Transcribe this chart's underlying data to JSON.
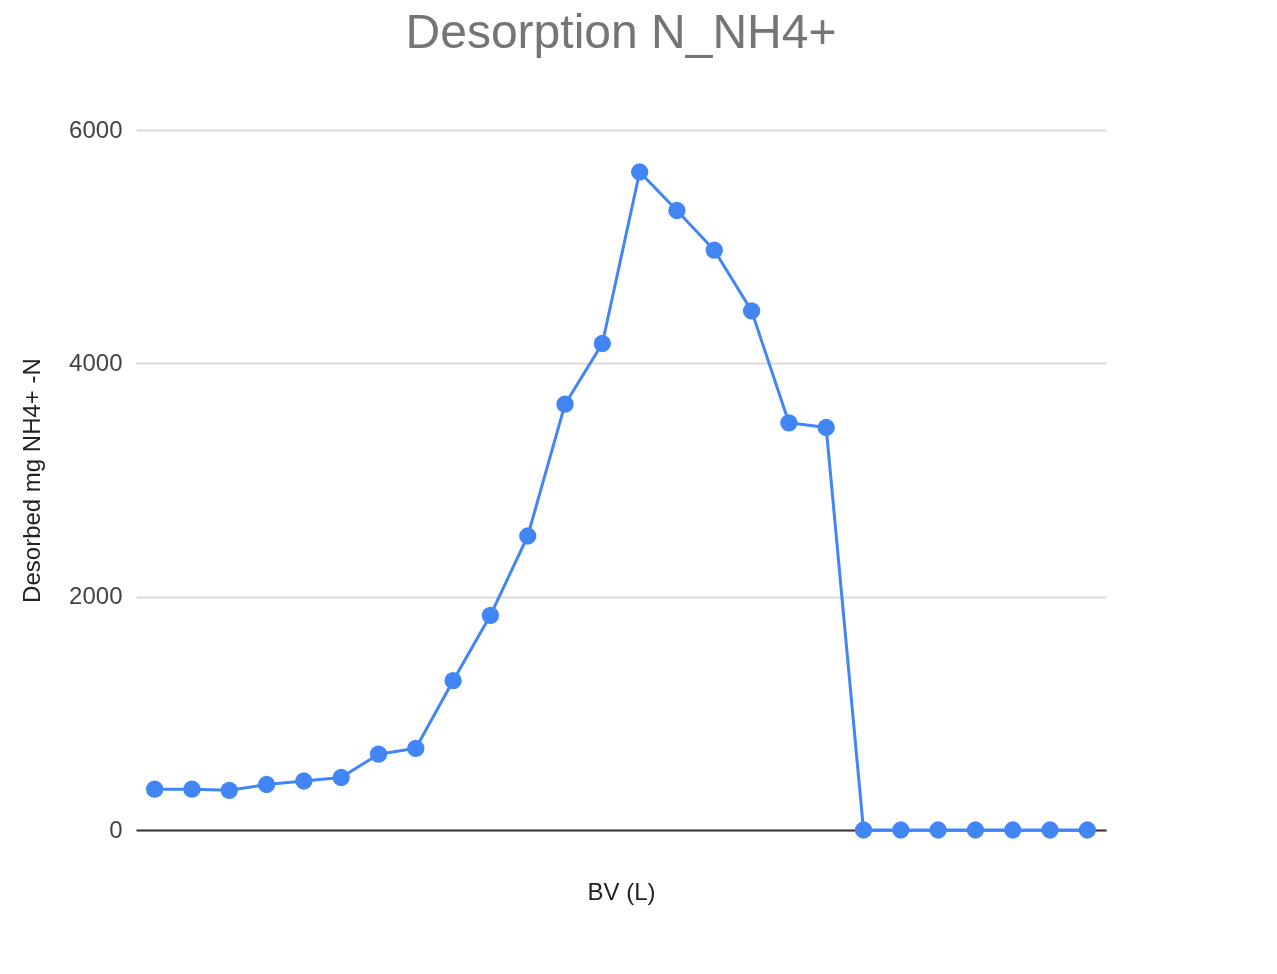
{
  "chart_data": {
    "type": "line",
    "title": "Desorption N_NH4+",
    "xlabel": "BV (L)",
    "ylabel": "Desorbed mg NH4+ -N",
    "categories": [
      null,
      null,
      null,
      null,
      null,
      null,
      null,
      null,
      null,
      null,
      null,
      null,
      null,
      null,
      null,
      null,
      null,
      null,
      null,
      null,
      null,
      null,
      null,
      null,
      null,
      null
    ],
    "series": [
      {
        "color": "#4285f4",
        "values": [
          350,
          350,
          340,
          390,
          420,
          450,
          650,
          700,
          1280,
          1840,
          2520,
          3650,
          4170,
          5640,
          5310,
          4970,
          4450,
          3490,
          3450,
          0,
          0,
          0,
          0,
          0,
          0,
          0
        ]
      }
    ],
    "ylim": [
      0,
      6000
    ],
    "yticks": [
      0,
      2000,
      4000,
      6000
    ],
    "grid": "y",
    "marker": "circle",
    "line_style": "solid"
  }
}
